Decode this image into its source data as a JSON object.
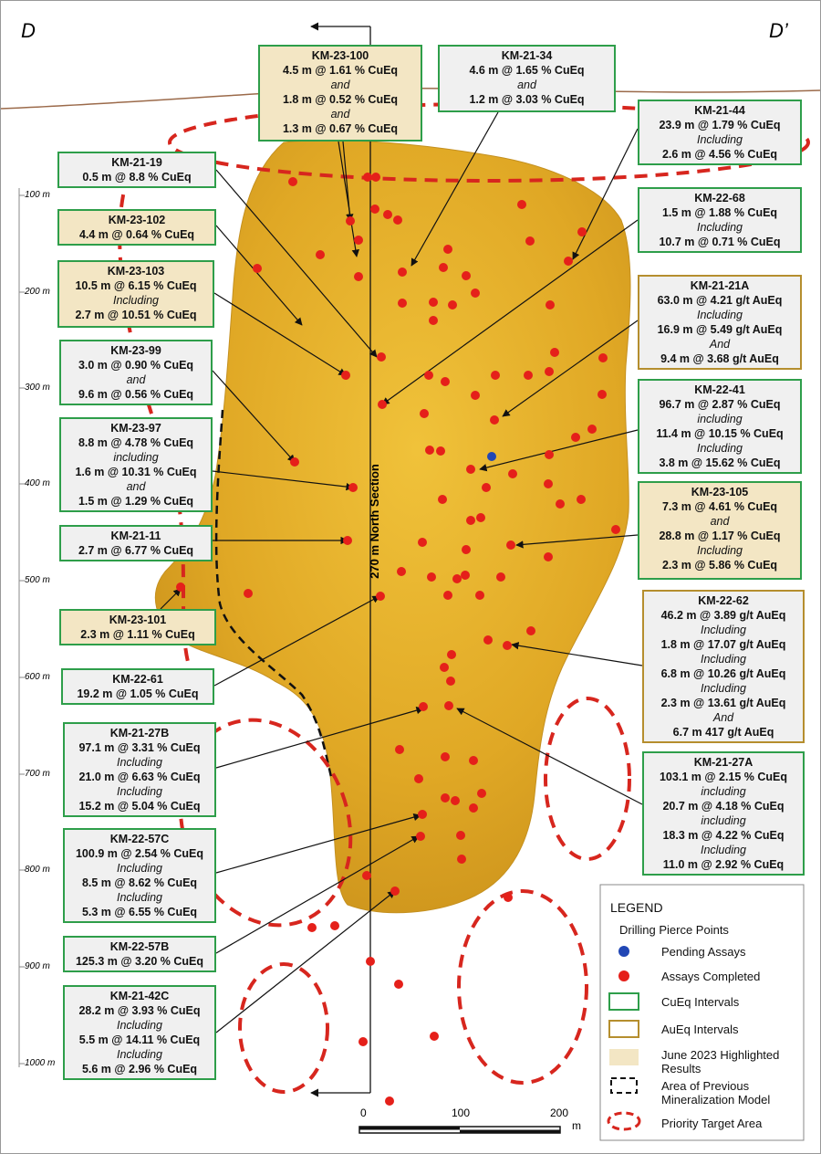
{
  "corners": [
    "D",
    "D’"
  ],
  "section_label": "270 m North Section",
  "depth_labels": [
    "100 m",
    "200 m",
    "300 m",
    "400 m",
    "500 m",
    "600 m",
    "700 m",
    "800 m",
    "900 m",
    "1000 m"
  ],
  "callouts": [
    {
      "lines": [
        "KM-23-100",
        "4.5 m @ 1.61 % CuEq",
        "and",
        "1.8 m @ 0.52 % CuEq",
        "and",
        "1.3 m @ 0.67 % CuEq"
      ],
      "border": "#2e9e4a",
      "fill": "#f3e6c4"
    },
    {
      "lines": [
        "KM-21-34",
        "4.6 m @ 1.65 % CuEq",
        "and",
        "1.2 m @ 3.03 % CuEq"
      ],
      "border": "#2e9e4a",
      "fill": "#f0f0f0"
    },
    {
      "lines": [
        "KM-21-44",
        "23.9 m @ 1.79 % CuEq",
        "Including",
        "2.6 m @ 4.56 % CuEq"
      ],
      "border": "#2e9e4a",
      "fill": "#f0f0f0"
    },
    {
      "lines": [
        "KM-22-68",
        "1.5 m @ 1.88 % CuEq",
        "Including",
        "10.7 m @ 0.71 % CuEq"
      ],
      "border": "#2e9e4a",
      "fill": "#f0f0f0"
    },
    {
      "lines": [
        "KM-21-21A",
        "63.0 m @ 4.21 g/t AuEq",
        "Including",
        "16.9 m @ 5.49 g/t AuEq",
        "And",
        "9.4 m @ 3.68 g/t AuEq"
      ],
      "border": "#b58e2e",
      "fill": "#f0f0f0"
    },
    {
      "lines": [
        "KM-22-41",
        "96.7 m @ 2.87 % CuEq",
        "including",
        "11.4 m @ 10.15 % CuEq",
        "Including",
        "3.8 m @ 15.62 % CuEq"
      ],
      "border": "#2e9e4a",
      "fill": "#f0f0f0"
    },
    {
      "lines": [
        "KM-23-105",
        "7.3 m @ 4.61  % CuEq",
        "and",
        "28.8 m @ 1.17 % CuEq",
        "Including",
        "2.3 m @ 5.86 % CuEq"
      ],
      "border": "#2e9e4a",
      "fill": "#f3e6c4"
    },
    {
      "lines": [
        "KM-22-62",
        "46.2 m @ 3.89 g/t AuEq",
        "Including",
        "1.8 m @ 17.07 g/t AuEq",
        "Including",
        "6.8 m @ 10.26 g/t AuEq",
        "Including",
        "2.3 m @ 13.61 g/t AuEq",
        "And",
        "6.7 m 417 g/t AuEq"
      ],
      "border": "#b58e2e",
      "fill": "#f0f0f0"
    },
    {
      "lines": [
        "KM-21-27A",
        "103.1 m @ 2.15 % CuEq",
        "including",
        "20.7 m @ 4.18 % CuEq",
        "including",
        "18.3 m @ 4.22 % CuEq",
        "Including",
        "11.0 m @ 2.92 % CuEq"
      ],
      "border": "#2e9e4a",
      "fill": "#f0f0f0"
    },
    {
      "lines": [
        "KM-21-19",
        "0.5 m @ 8.8 % CuEq"
      ],
      "border": "#2e9e4a",
      "fill": "#f0f0f0"
    },
    {
      "lines": [
        "KM-23-102",
        "4.4 m @ 0.64 % CuEq"
      ],
      "border": "#2e9e4a",
      "fill": "#f3e6c4"
    },
    {
      "lines": [
        "KM-23-103",
        "10.5 m @ 6.15 % CuEq",
        "Including",
        "2.7 m @ 10.51 % CuEq"
      ],
      "border": "#2e9e4a",
      "fill": "#f3e6c4"
    },
    {
      "lines": [
        "KM-23-99",
        "3.0 m @ 0.90 % CuEq",
        "and",
        "9.6 m @ 0.56 % CuEq"
      ],
      "border": "#2e9e4a",
      "fill": "#f0f0f0"
    },
    {
      "lines": [
        "KM-23-97",
        "8.8 m @ 4.78 % CuEq",
        "including",
        "1.6 m @ 10.31 % CuEq",
        "and",
        "1.5 m @ 1.29 % CuEq"
      ],
      "border": "#2e9e4a",
      "fill": "#f0f0f0"
    },
    {
      "lines": [
        "KM-21-11",
        "2.7 m @ 6.77 % CuEq"
      ],
      "border": "#2e9e4a",
      "fill": "#f0f0f0"
    },
    {
      "lines": [
        "KM-23-101",
        "2.3 m @ 1.11 % CuEq"
      ],
      "border": "#2e9e4a",
      "fill": "#f3e6c4"
    },
    {
      "lines": [
        "KM-22-61",
        "19.2 m @ 1.05 % CuEq"
      ],
      "border": "#2e9e4a",
      "fill": "#f0f0f0"
    },
    {
      "lines": [
        "KM-21-27B",
        "97.1 m @ 3.31 % CuEq",
        "Including",
        "21.0 m @ 6.63 % CuEq",
        "Including",
        "15.2 m @ 5.04 % CuEq"
      ],
      "border": "#2e9e4a",
      "fill": "#f0f0f0"
    },
    {
      "lines": [
        "KM-22-57C",
        "100.9 m @ 2.54 % CuEq",
        "Including",
        "8.5 m @ 8.62 % CuEq",
        "Including",
        "5.3 m @ 6.55 % CuEq"
      ],
      "border": "#2e9e4a",
      "fill": "#f0f0f0"
    },
    {
      "lines": [
        "KM-22-57B",
        "125.3 m @ 3.20 % CuEq"
      ],
      "border": "#2e9e4a",
      "fill": "#f0f0f0"
    },
    {
      "lines": [
        "KM-21-42C",
        "28.2 m @ 3.93 % CuEq",
        "Including",
        "5.5 m @ 14.11 % CuEq",
        "Including",
        "5.6 m @ 2.96 % CuEq"
      ],
      "border": "#2e9e4a",
      "fill": "#f0f0f0"
    }
  ],
  "scale_bar": {
    "labels": [
      "0",
      "100",
      "200"
    ],
    "unit": "m"
  },
  "legend": {
    "title": "LEGEND",
    "subtitle": "Drilling Pierce Points",
    "items": [
      "Pending Assays",
      "Assays Completed",
      "CuEq Intervals",
      "AuEq Intervals",
      "June 2023 Highlighted Results",
      "Area of Previous Mineralization Model",
      "Priority Target Area"
    ]
  }
}
